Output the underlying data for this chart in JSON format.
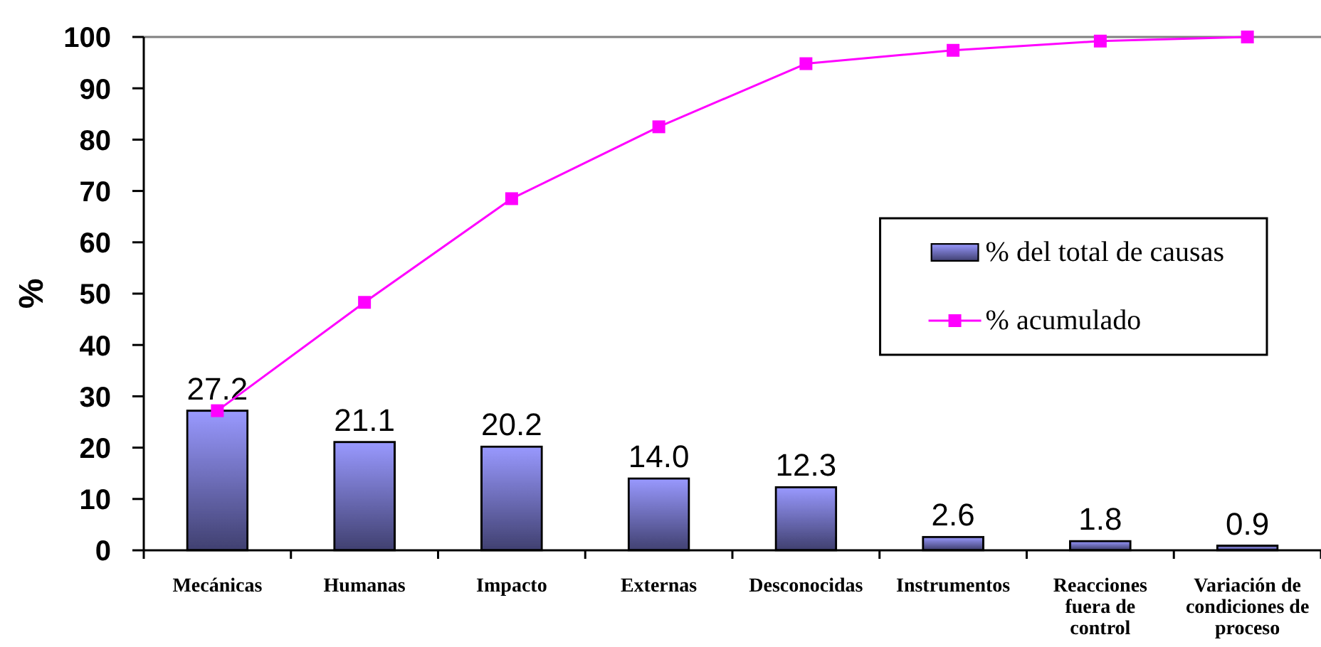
{
  "chart_data": {
    "type": "bar",
    "ylabel": "%",
    "categories": [
      "Mecánicas",
      "Humanas",
      "Impacto",
      "Externas",
      "Desconocidas",
      "Instrumentos",
      "Reacciones fuera de control",
      "Variación de condiciones de proceso"
    ],
    "series": [
      {
        "name": "% del total de causas",
        "color": "#9999ff",
        "values": [
          27.2,
          21.1,
          20.2,
          14.0,
          12.3,
          2.6,
          1.8,
          0.9
        ],
        "value_labels": [
          "27.2",
          "21.1",
          "20.2",
          "14.0",
          "12.3",
          "2.6",
          "1.8",
          "0.9"
        ]
      },
      {
        "name": "% acumulado",
        "type": "line",
        "color": "#ff00ff",
        "marker": "square",
        "line_style": "solid",
        "values": [
          27.2,
          48.3,
          68.5,
          82.5,
          94.8,
          97.4,
          99.2,
          100
        ]
      }
    ],
    "ylim": [
      0,
      100
    ],
    "yticks": [
      0,
      10,
      20,
      30,
      40,
      50,
      60,
      70,
      80,
      90,
      100
    ],
    "legend": "right"
  }
}
